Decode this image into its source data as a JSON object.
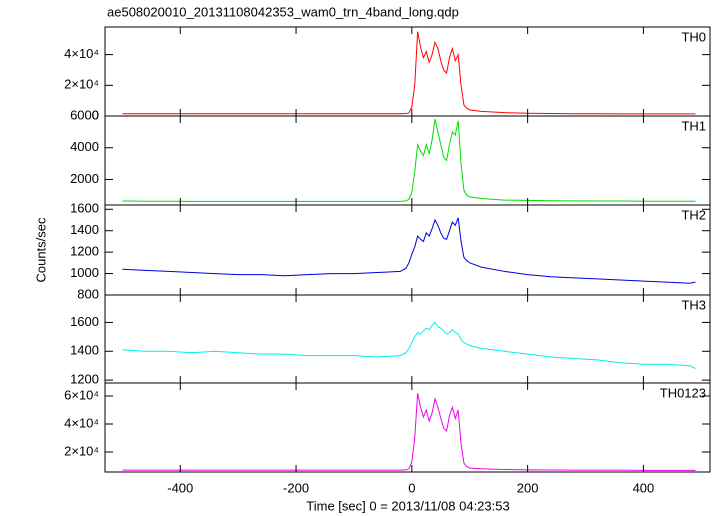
{
  "title": "ae508020010_20131108042353_wam0_trn_4band_long.qdp",
  "ylabel": "Counts/sec",
  "xlabel": "Time [sec] 0 = 2013/11/08 04:23:53",
  "chart_data": [
    {
      "type": "line",
      "xlim": [
        -530,
        515
      ],
      "ylim": [
        0,
        58000
      ],
      "yticks": [
        0,
        {
          "value": 20000,
          "label": "2×10⁴"
        },
        {
          "value": 40000,
          "label": "4×10⁴"
        }
      ],
      "x": [
        -500,
        -460,
        -420,
        -380,
        -340,
        -300,
        -260,
        -220,
        -180,
        -140,
        -100,
        -60,
        -20,
        -10,
        -5,
        0,
        5,
        10,
        15,
        20,
        25,
        30,
        35,
        40,
        45,
        50,
        55,
        60,
        65,
        70,
        75,
        80,
        85,
        90,
        95,
        100,
        120,
        160,
        200,
        240,
        280,
        320,
        360,
        400,
        440,
        480,
        490
      ],
      "series": [
        {
          "name": "TH0",
          "color": "#ff0000",
          "values": [
            1500,
            1500,
            1500,
            1500,
            1500,
            1500,
            1500,
            1500,
            1500,
            1500,
            1500,
            1500,
            1500,
            1600,
            2000,
            6000,
            20000,
            55000,
            45000,
            38000,
            42000,
            35000,
            40000,
            48000,
            44000,
            36000,
            30000,
            28000,
            38000,
            44000,
            36000,
            40000,
            20000,
            7000,
            5000,
            4000,
            3000,
            2200,
            1800,
            1600,
            1500,
            1500,
            1400,
            1400,
            1400,
            1400,
            1400
          ]
        }
      ]
    },
    {
      "type": "line",
      "xlim": [
        -530,
        515
      ],
      "ylim": [
        390,
        6000
      ],
      "yticks": [
        2000,
        4000,
        6000
      ],
      "x": [
        -500,
        -460,
        -420,
        -380,
        -340,
        -300,
        -260,
        -220,
        -180,
        -140,
        -100,
        -60,
        -20,
        -10,
        -5,
        0,
        5,
        10,
        15,
        20,
        25,
        30,
        35,
        40,
        45,
        50,
        55,
        60,
        65,
        70,
        75,
        80,
        85,
        90,
        95,
        100,
        120,
        160,
        200,
        240,
        280,
        320,
        360,
        400,
        440,
        480,
        490
      ],
      "series": [
        {
          "name": "TH1",
          "color": "#00dd00",
          "values": [
            640,
            630,
            630,
            620,
            620,
            620,
            620,
            620,
            620,
            620,
            620,
            620,
            620,
            650,
            750,
            1200,
            2500,
            4200,
            3800,
            3500,
            4200,
            3600,
            4500,
            5800,
            5000,
            4200,
            3400,
            3200,
            4200,
            5000,
            4800,
            5700,
            3000,
            1300,
            1000,
            900,
            800,
            700,
            680,
            660,
            650,
            640,
            640,
            630,
            630,
            630,
            630
          ]
        }
      ]
    },
    {
      "type": "line",
      "xlim": [
        -530,
        515
      ],
      "ylim": [
        800,
        1640
      ],
      "yticks": [
        800,
        1000,
        1200,
        1400,
        1600
      ],
      "x": [
        -500,
        -460,
        -420,
        -380,
        -340,
        -300,
        -260,
        -220,
        -180,
        -140,
        -100,
        -60,
        -20,
        -10,
        -5,
        0,
        5,
        10,
        15,
        20,
        25,
        30,
        35,
        40,
        45,
        50,
        55,
        60,
        65,
        70,
        75,
        80,
        85,
        90,
        95,
        100,
        120,
        160,
        200,
        240,
        280,
        320,
        360,
        400,
        440,
        480,
        490
      ],
      "series": [
        {
          "name": "TH2",
          "color": "#0000dd",
          "values": [
            1040,
            1030,
            1020,
            1010,
            1000,
            990,
            990,
            980,
            990,
            1000,
            1000,
            1010,
            1020,
            1050,
            1100,
            1180,
            1250,
            1350,
            1320,
            1300,
            1380,
            1350,
            1420,
            1500,
            1450,
            1380,
            1330,
            1320,
            1400,
            1480,
            1450,
            1520,
            1300,
            1150,
            1120,
            1100,
            1060,
            1020,
            990,
            970,
            960,
            950,
            940,
            930,
            920,
            910,
            920
          ]
        }
      ]
    },
    {
      "type": "line",
      "xlim": [
        -530,
        515
      ],
      "ylim": [
        1180,
        1790
      ],
      "yticks": [
        1200,
        1400,
        1600
      ],
      "x": [
        -500,
        -460,
        -420,
        -380,
        -340,
        -300,
        -260,
        -220,
        -180,
        -140,
        -100,
        -60,
        -20,
        -10,
        -5,
        0,
        5,
        10,
        15,
        20,
        25,
        30,
        35,
        40,
        45,
        50,
        55,
        60,
        65,
        70,
        75,
        80,
        85,
        90,
        95,
        100,
        120,
        160,
        200,
        240,
        280,
        320,
        360,
        400,
        440,
        480,
        490
      ],
      "series": [
        {
          "name": "TH3",
          "color": "#00eeee",
          "values": [
            1410,
            1400,
            1400,
            1390,
            1400,
            1390,
            1380,
            1380,
            1370,
            1370,
            1370,
            1360,
            1370,
            1390,
            1420,
            1460,
            1500,
            1530,
            1520,
            1540,
            1560,
            1550,
            1580,
            1600,
            1570,
            1560,
            1540,
            1520,
            1530,
            1550,
            1530,
            1520,
            1480,
            1460,
            1450,
            1440,
            1420,
            1400,
            1380,
            1360,
            1350,
            1340,
            1320,
            1310,
            1310,
            1300,
            1280
          ]
        }
      ]
    },
    {
      "type": "line",
      "xlim": [
        -530,
        515
      ],
      "ylim": [
        5700,
        69300
      ],
      "yticks": [
        {
          "value": 20000,
          "label": "2×10⁴"
        },
        {
          "value": 40000,
          "label": "4×10⁴"
        },
        {
          "value": 60000,
          "label": "6×10⁴"
        }
      ],
      "xticks": [
        -400,
        -200,
        0,
        200,
        400
      ],
      "x": [
        -500,
        -460,
        -420,
        -380,
        -340,
        -300,
        -260,
        -220,
        -180,
        -140,
        -100,
        -60,
        -20,
        -10,
        -5,
        0,
        5,
        10,
        15,
        20,
        25,
        30,
        35,
        40,
        45,
        50,
        55,
        60,
        65,
        70,
        75,
        80,
        85,
        90,
        95,
        100,
        120,
        160,
        200,
        240,
        280,
        320,
        360,
        400,
        440,
        480,
        490
      ],
      "series": [
        {
          "name": "TH0123",
          "color": "#ee00ee",
          "values": [
            7000,
            7000,
            7000,
            7000,
            7000,
            7000,
            7000,
            7000,
            7000,
            7000,
            7000,
            7000,
            7000,
            7200,
            8000,
            13000,
            30000,
            62000,
            52000,
            45000,
            50000,
            42000,
            48000,
            58000,
            52000,
            44000,
            37000,
            35000,
            46000,
            52000,
            44000,
            50000,
            26000,
            12000,
            9500,
            8500,
            8000,
            7500,
            7200,
            7100,
            7000,
            7000,
            7000,
            6900,
            6900,
            6900,
            6900
          ]
        }
      ]
    }
  ]
}
